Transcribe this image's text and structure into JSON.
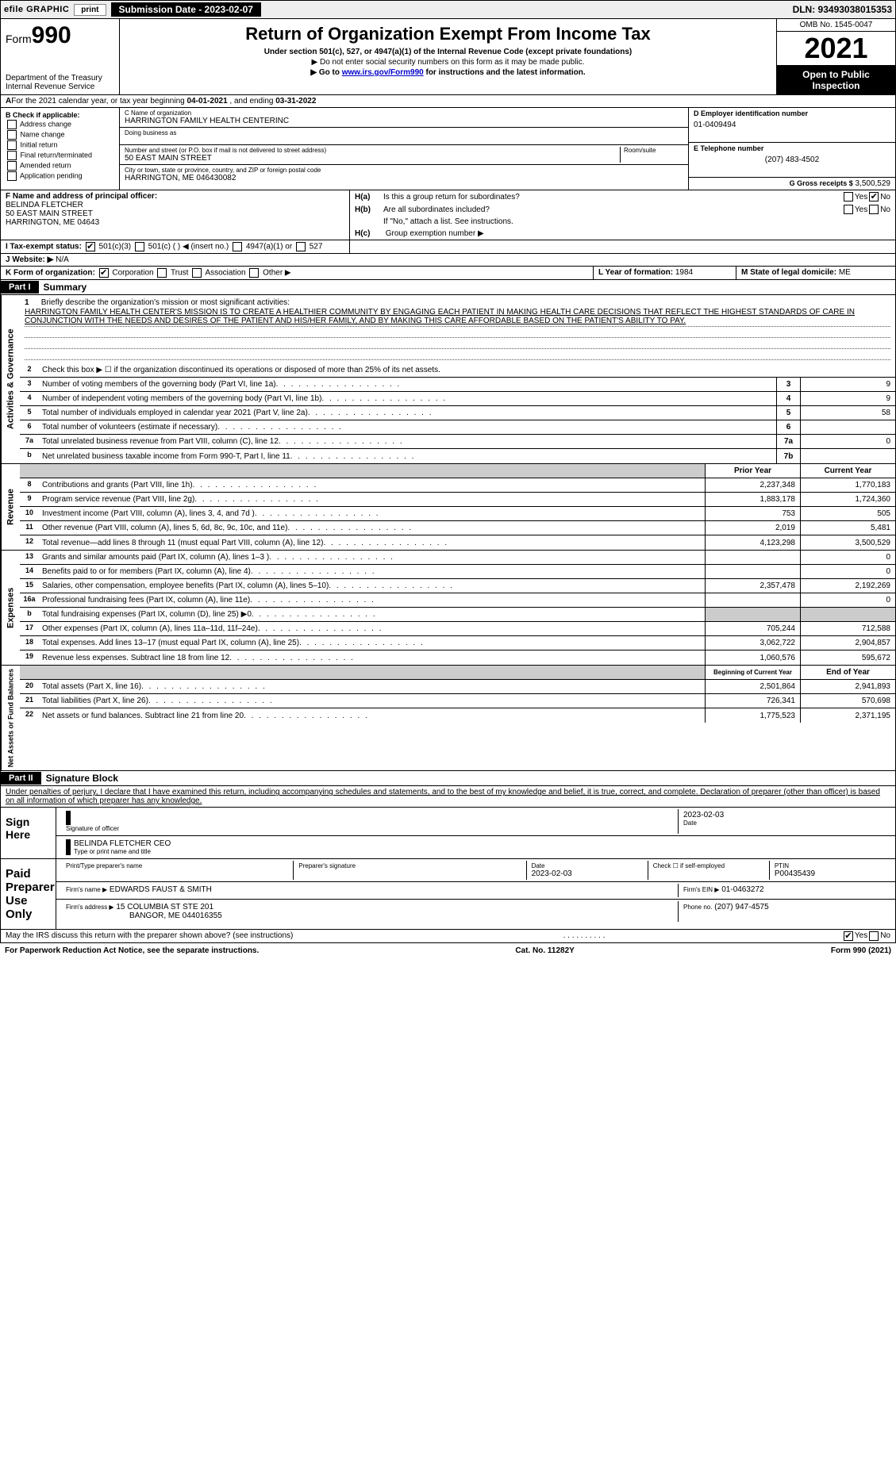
{
  "topbar": {
    "efile": "efile GRAPHIC",
    "print": "print",
    "submission": "Submission Date - 2023-02-07",
    "dln": "DLN: 93493038015353"
  },
  "header": {
    "form_prefix": "Form",
    "form_num": "990",
    "dept": "Department of the Treasury",
    "irs": "Internal Revenue Service",
    "title": "Return of Organization Exempt From Income Tax",
    "sub1": "Under section 501(c), 527, or 4947(a)(1) of the Internal Revenue Code (except private foundations)",
    "sub2": "▶ Do not enter social security numbers on this form as it may be made public.",
    "sub3_pre": "▶ Go to ",
    "sub3_link": "www.irs.gov/Form990",
    "sub3_post": " for instructions and the latest information.",
    "omb": "OMB No. 1545-0047",
    "year": "2021",
    "inspection": "Open to Public Inspection"
  },
  "lineA": {
    "label_pre": "For the 2021 calendar year, or tax year beginning ",
    "begin": "04-01-2021",
    "label_mid": " , and ending ",
    "end": "03-31-2022"
  },
  "colB": {
    "header": "B Check if applicable:",
    "items": [
      "Address change",
      "Name change",
      "Initial return",
      "Final return/terminated",
      "Amended return",
      "Application pending"
    ]
  },
  "colC": {
    "lbl_name": "C Name of organization",
    "name": "HARRINGTON FAMILY HEALTH CENTERINC",
    "lbl_dba": "Doing business as",
    "dba": "",
    "lbl_street": "Number and street (or P.O. box if mail is not delivered to street address)",
    "lbl_room": "Room/suite",
    "street": "50 EAST MAIN STREET",
    "lbl_city": "City or town, state or province, country, and ZIP or foreign postal code",
    "city": "HARRINGTON, ME  046430082"
  },
  "colD": {
    "lbl_ein": "D Employer identification number",
    "ein": "01-0409494",
    "lbl_phone": "E Telephone number",
    "phone": "(207) 483-4502",
    "lbl_gross": "G Gross receipts $",
    "gross": "3,500,529"
  },
  "blockF": {
    "lbl": "F Name and address of principal officer:",
    "name": "BELINDA FLETCHER",
    "street": "50 EAST MAIN STREET",
    "city": "HARRINGTON, ME  04643"
  },
  "blockH": {
    "ha_lbl": "H(a)",
    "ha_txt": "Is this a group return for subordinates?",
    "hb_lbl": "H(b)",
    "hb_txt": "Are all subordinates included?",
    "hb_note": "If \"No,\" attach a list. See instructions.",
    "hc_lbl": "H(c)",
    "hc_txt": "Group exemption number ▶",
    "yes": "Yes",
    "no": "No"
  },
  "blockI": {
    "lbl": "I Tax-exempt status:",
    "opts": [
      "501(c)(3)",
      "501(c) (   ) ◀ (insert no.)",
      "4947(a)(1) or",
      "527"
    ]
  },
  "blockJ": {
    "lbl": "J Website: ▶",
    "val": "N/A"
  },
  "blockK": {
    "lbl": "K Form of organization:",
    "opts": [
      "Corporation",
      "Trust",
      "Association",
      "Other ▶"
    ]
  },
  "blockL": {
    "lbl": "L Year of formation:",
    "val": "1984"
  },
  "blockM": {
    "lbl": "M State of legal domicile:",
    "val": "ME"
  },
  "part1": {
    "bar": "Part I",
    "title": "Summary",
    "q1_lbl": "1",
    "q1_txt": "Briefly describe the organization's mission or most significant activities:",
    "mission": "HARRINGTON FAMILY HEALTH CENTER'S MISSION IS TO CREATE A HEALTHIER COMMUNITY BY ENGAGING EACH PATIENT IN MAKING HEALTH CARE DECISIONS THAT REFLECT THE HIGHEST STANDARDS OF CARE IN CONJUNCTION WITH THE NEEDS AND DESIRES OF THE PATIENT AND HIS/HER FAMILY, AND BY MAKING THIS CARE AFFORDABLE BASED ON THE PATIENT'S ABILITY TO PAY.",
    "q2_txt": "Check this box ▶ ☐ if the organization discontinued its operations or disposed of more than 25% of its net assets.",
    "gov_lines": [
      {
        "n": "3",
        "t": "Number of voting members of the governing body (Part VI, line 1a)",
        "box": "3",
        "v": "9"
      },
      {
        "n": "4",
        "t": "Number of independent voting members of the governing body (Part VI, line 1b)",
        "box": "4",
        "v": "9"
      },
      {
        "n": "5",
        "t": "Total number of individuals employed in calendar year 2021 (Part V, line 2a)",
        "box": "5",
        "v": "58"
      },
      {
        "n": "6",
        "t": "Total number of volunteers (estimate if necessary)",
        "box": "6",
        "v": ""
      },
      {
        "n": "7a",
        "t": "Total unrelated business revenue from Part VIII, column (C), line 12",
        "box": "7a",
        "v": "0"
      },
      {
        "n": "b",
        "t": "Net unrelated business taxable income from Form 990-T, Part I, line 11",
        "box": "7b",
        "v": ""
      }
    ],
    "prior_hdr": "Prior Year",
    "curr_hdr": "Current Year",
    "rev_lines": [
      {
        "n": "8",
        "t": "Contributions and grants (Part VIII, line 1h)",
        "p": "2,237,348",
        "c": "1,770,183"
      },
      {
        "n": "9",
        "t": "Program service revenue (Part VIII, line 2g)",
        "p": "1,883,178",
        "c": "1,724,360"
      },
      {
        "n": "10",
        "t": "Investment income (Part VIII, column (A), lines 3, 4, and 7d )",
        "p": "753",
        "c": "505"
      },
      {
        "n": "11",
        "t": "Other revenue (Part VIII, column (A), lines 5, 6d, 8c, 9c, 10c, and 11e)",
        "p": "2,019",
        "c": "5,481"
      },
      {
        "n": "12",
        "t": "Total revenue—add lines 8 through 11 (must equal Part VIII, column (A), line 12)",
        "p": "4,123,298",
        "c": "3,500,529"
      }
    ],
    "exp_lines": [
      {
        "n": "13",
        "t": "Grants and similar amounts paid (Part IX, column (A), lines 1–3 )",
        "p": "",
        "c": "0"
      },
      {
        "n": "14",
        "t": "Benefits paid to or for members (Part IX, column (A), line 4)",
        "p": "",
        "c": "0"
      },
      {
        "n": "15",
        "t": "Salaries, other compensation, employee benefits (Part IX, column (A), lines 5–10)",
        "p": "2,357,478",
        "c": "2,192,269"
      },
      {
        "n": "16a",
        "t": "Professional fundraising fees (Part IX, column (A), line 11e)",
        "p": "",
        "c": "0"
      },
      {
        "n": "b",
        "t": "Total fundraising expenses (Part IX, column (D), line 25) ▶0",
        "p": "grey",
        "c": "grey"
      },
      {
        "n": "17",
        "t": "Other expenses (Part IX, column (A), lines 11a–11d, 11f–24e)",
        "p": "705,244",
        "c": "712,588"
      },
      {
        "n": "18",
        "t": "Total expenses. Add lines 13–17 (must equal Part IX, column (A), line 25)",
        "p": "3,062,722",
        "c": "2,904,857"
      },
      {
        "n": "19",
        "t": "Revenue less expenses. Subtract line 18 from line 12",
        "p": "1,060,576",
        "c": "595,672"
      }
    ],
    "net_hdr_p": "Beginning of Current Year",
    "net_hdr_c": "End of Year",
    "net_lines": [
      {
        "n": "20",
        "t": "Total assets (Part X, line 16)",
        "p": "2,501,864",
        "c": "2,941,893"
      },
      {
        "n": "21",
        "t": "Total liabilities (Part X, line 26)",
        "p": "726,341",
        "c": "570,698"
      },
      {
        "n": "22",
        "t": "Net assets or fund balances. Subtract line 21 from line 20",
        "p": "1,775,523",
        "c": "2,371,195"
      }
    ]
  },
  "tabs": {
    "gov": "Activities & Governance",
    "rev": "Revenue",
    "exp": "Expenses",
    "net": "Net Assets or Fund Balances"
  },
  "part2": {
    "bar": "Part II",
    "title": "Signature Block",
    "decl": "Under penalties of perjury, I declare that I have examined this return, including accompanying schedules and statements, and to the best of my knowledge and belief, it is true, correct, and complete. Declaration of preparer (other than officer) is based on all information of which preparer has any knowledge.",
    "sign_here": "Sign Here",
    "sig_officer": "Signature of officer",
    "sig_date": "2023-02-03",
    "date_lbl": "Date",
    "officer_name": "BELINDA FLETCHER CEO",
    "officer_lbl": "Type or print name and title",
    "paid": "Paid Preparer Use Only",
    "prep_name_lbl": "Print/Type preparer's name",
    "prep_sig_lbl": "Preparer's signature",
    "prep_date": "2023-02-03",
    "check_self": "Check ☐ if self-employed",
    "ptin_lbl": "PTIN",
    "ptin": "P00435439",
    "firm_name_lbl": "Firm's name    ▶",
    "firm_name": "EDWARDS FAUST & SMITH",
    "firm_ein_lbl": "Firm's EIN ▶",
    "firm_ein": "01-0463272",
    "firm_addr_lbl": "Firm's address ▶",
    "firm_addr1": "15 COLUMBIA ST STE 201",
    "firm_addr2": "BANGOR, ME  044016355",
    "firm_phone_lbl": "Phone no.",
    "firm_phone": "(207) 947-4575",
    "may_irs": "May the IRS discuss this return with the preparer shown above? (see instructions)"
  },
  "footer": {
    "left": "For Paperwork Reduction Act Notice, see the separate instructions.",
    "mid": "Cat. No. 11282Y",
    "right": "Form 990 (2021)"
  }
}
